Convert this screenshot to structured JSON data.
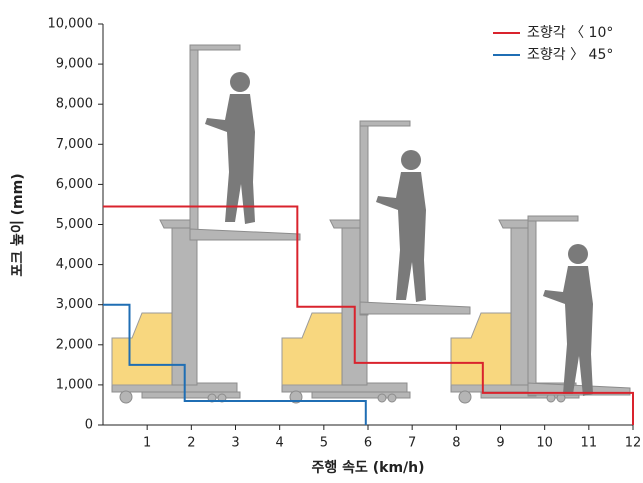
{
  "chart_data": {
    "type": "line",
    "x_label": "주행 속도 (km/h)",
    "y_label": "포크 높이 (mm)",
    "xlim": [
      0,
      12
    ],
    "xticks": [
      1,
      2,
      3,
      4,
      5,
      6,
      7,
      8,
      9,
      10,
      11,
      12
    ],
    "ylim": [
      0,
      10000
    ],
    "yticks": [
      0,
      {
        "value": 1000,
        "label": "1,000"
      },
      {
        "value": 2000,
        "label": "2,000"
      },
      {
        "value": 3000,
        "label": "3,000"
      },
      {
        "value": 4000,
        "label": "4,000"
      },
      {
        "value": 5000,
        "label": "5,000"
      },
      {
        "value": 6000,
        "label": "6,000"
      },
      {
        "value": 7000,
        "label": "7,000"
      },
      {
        "value": 8000,
        "label": "8,000"
      },
      {
        "value": 9000,
        "label": "9,000"
      },
      {
        "value": 10000,
        "label": "10,000"
      }
    ],
    "legend": "top-right",
    "series": [
      {
        "name": "조향각 〈 10°",
        "color": "#d9232d",
        "x": [
          0,
          4.4,
          4.4,
          5.7,
          5.7,
          8.6,
          8.6,
          12,
          12
        ],
        "values": [
          5450,
          5450,
          2950,
          2950,
          1550,
          1550,
          800,
          800,
          0
        ]
      },
      {
        "name": "조향각 〉 45°",
        "color": "#1f6eb4",
        "x": [
          0,
          0.6,
          0.6,
          1.85,
          1.85,
          5.95,
          5.95
        ],
        "values": [
          3000,
          3000,
          1500,
          1500,
          600,
          600,
          0
        ]
      }
    ]
  }
}
